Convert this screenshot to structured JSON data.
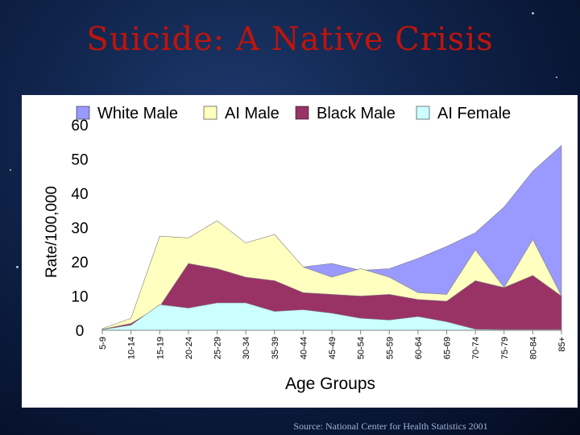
{
  "slide": {
    "title": "Suicide: A Native Crisis",
    "source": "Source: National Center for Health Statistics 2001"
  },
  "chart_data": {
    "type": "area",
    "title": "",
    "xlabel": "Age Groups",
    "ylabel": "Rate/100,000",
    "ylim": [
      0,
      60
    ],
    "yticks": [
      0,
      10,
      20,
      30,
      40,
      50,
      60
    ],
    "legend_position": "top",
    "categories": [
      "5-9",
      "10-14",
      "15-19",
      "20-24",
      "25-29",
      "30-34",
      "35-39",
      "40-44",
      "45-49",
      "50-54",
      "55-59",
      "60-64",
      "65-69",
      "70-74",
      "75-79",
      "80-84",
      "85+"
    ],
    "series": [
      {
        "name": "White Male",
        "color": "#9999ff",
        "values": [
          0.5,
          2,
          7.5,
          6.5,
          8,
          8,
          6,
          18.5,
          19.5,
          17.5,
          18,
          21,
          24.5,
          28.5,
          36,
          46.5,
          54
        ]
      },
      {
        "name": "AI Male",
        "color": "#ffffc0",
        "values": [
          0.5,
          3.5,
          27.5,
          27,
          32,
          25.5,
          28,
          18.5,
          15.5,
          18,
          15.5,
          11,
          10.5,
          23.5,
          12.5,
          26.5,
          10
        ]
      },
      {
        "name": "Black Male",
        "color": "#993366",
        "values": [
          0.3,
          2,
          7,
          19.5,
          18,
          15.5,
          14.5,
          11,
          10.5,
          10,
          10.5,
          9,
          8.5,
          14.5,
          12.5,
          16,
          10
        ]
      },
      {
        "name": "AI Female",
        "color": "#ccffff",
        "values": [
          0.2,
          1.5,
          7.5,
          6.5,
          8,
          8,
          5.5,
          6,
          5,
          3.5,
          3,
          4,
          2.5,
          0.3,
          0.2,
          0.2,
          0.2
        ]
      }
    ]
  }
}
